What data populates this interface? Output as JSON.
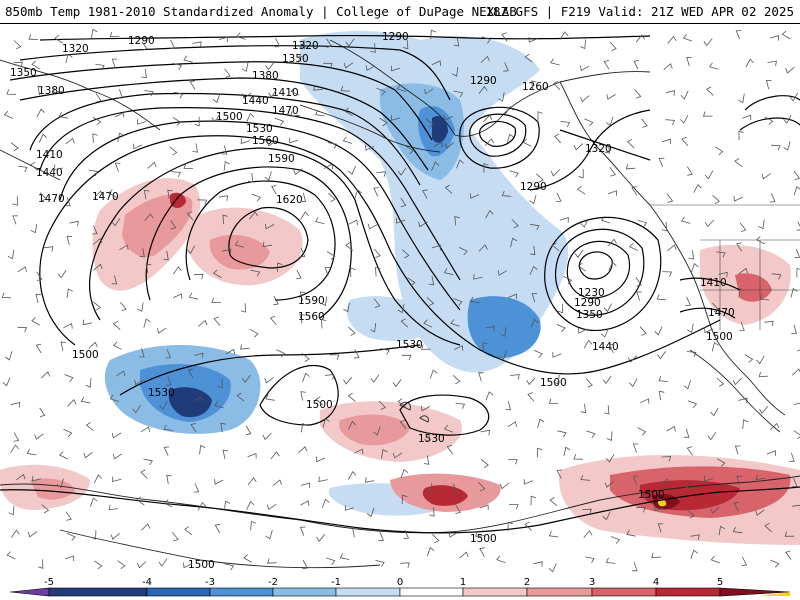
{
  "header": {
    "left_title": "850mb Temp 1981-2010 Standardized Anomaly | College of DuPage NEXLAB",
    "right_title": "18Z GFS | F219 Valid: 21Z WED APR 02 2025"
  },
  "colorbar": {
    "ticks": [
      "-5",
      "-4",
      "-3",
      "-2",
      "-1",
      "0",
      "1",
      "2",
      "3",
      "4",
      "5"
    ],
    "colors": [
      "#6b3fa0",
      "#1f3c78",
      "#2b63b5",
      "#4d91d6",
      "#8bbce6",
      "#c6dcf2",
      "#ffffff",
      "#f2c8c8",
      "#e8999c",
      "#d8636b",
      "#b82835",
      "#801020",
      "#f2d21c"
    ]
  },
  "contour_labels": [
    {
      "text": "1290"
    },
    {
      "text": "1320"
    },
    {
      "text": "1350"
    },
    {
      "text": "1380"
    },
    {
      "text": "1410"
    },
    {
      "text": "1440"
    },
    {
      "text": "1470"
    },
    {
      "text": "1500"
    },
    {
      "text": "1530"
    },
    {
      "text": "1560"
    },
    {
      "text": "1590"
    },
    {
      "text": "1620"
    },
    {
      "text": "1260"
    },
    {
      "text": "1230"
    }
  ],
  "legend_colors": {
    "contour": "#000000",
    "coast": "#222222",
    "barb": "#555555",
    "cold_1": "#c6dcf2",
    "cold_2": "#8bbce6",
    "cold_3": "#4d91d6",
    "cold_4": "#1f3c78",
    "warm_1": "#f2c8c8",
    "warm_2": "#e8999c",
    "warm_3": "#d8636b",
    "warm_4": "#b82835",
    "warm_5": "#801020",
    "extreme": "#f2d21c"
  }
}
